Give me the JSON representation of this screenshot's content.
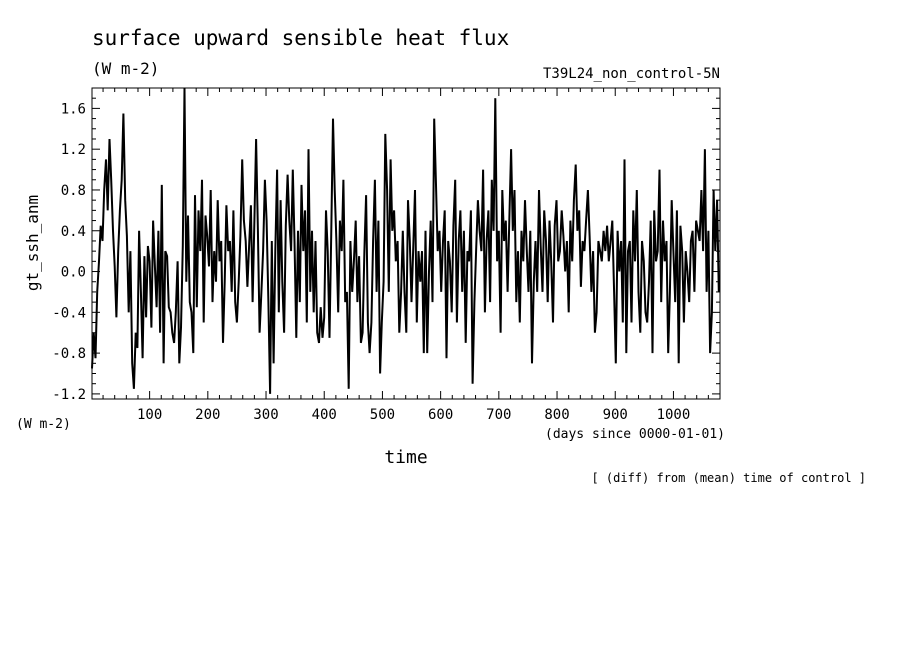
{
  "chart_data": {
    "type": "line",
    "title": "surface upward sensible heat flux",
    "units": "(W m-2)",
    "run_label": "T39L24_non_control-5N",
    "ylabel": "gt_ssh_anm",
    "y_units_note": "(W m-2)",
    "xlabel": "time",
    "x_units_note": "(days since 0000-01-01)",
    "footnote": "[ (diff) from (mean) time of control ]",
    "xlim": [
      1,
      1080
    ],
    "ylim": [
      -1.25,
      1.8
    ],
    "x_ticks": [
      100,
      200,
      300,
      400,
      500,
      600,
      700,
      800,
      900,
      1000
    ],
    "y_ticks": [
      -1.2,
      -0.8,
      -0.4,
      0.0,
      0.4,
      0.8,
      1.2,
      1.6
    ],
    "y_tick_labels": [
      "-1.2",
      "-0.8",
      "-0.4",
      "0.0",
      "0.4",
      "0.8",
      "1.2",
      "1.6"
    ],
    "series": [
      {
        "x": [
          1,
          4,
          7,
          10,
          13,
          16,
          19,
          22,
          25,
          28,
          31,
          34,
          37,
          40,
          43,
          46,
          49,
          52,
          55,
          58,
          61,
          64,
          67,
          70,
          73,
          76,
          79,
          82,
          85,
          88,
          91,
          94,
          97,
          100,
          103,
          106,
          109,
          112,
          115,
          118,
          121,
          124,
          127,
          130,
          133,
          136,
          139,
          142,
          145,
          148,
          151,
          154,
          157,
          160,
          163,
          166,
          169,
          172,
          175,
          178,
          181,
          184,
          187,
          190,
          193,
          196,
          199,
          202,
          205,
          208,
          211,
          214,
          217,
          220,
          223,
          226,
          229,
          232,
          235,
          238,
          241,
          244,
          247,
          250,
          253,
          256,
          259,
          262,
          265,
          268,
          271,
          274,
          277,
          280,
          283,
          286,
          289,
          292,
          295,
          298,
          301,
          304,
          307,
          310,
          313,
          316,
          319,
          322,
          325,
          328,
          331,
          334,
          337,
          340,
          343,
          346,
          349,
          352,
          355,
          358,
          361,
          364,
          367,
          370,
          373,
          376,
          379,
          382,
          385,
          388,
          391,
          394,
          397,
          400,
          403,
          406,
          409,
          412,
          415,
          418,
          421,
          424,
          427,
          430,
          433,
          436,
          439,
          442,
          445,
          448,
          451,
          454,
          457,
          460,
          463,
          466,
          469,
          472,
          475,
          478,
          481,
          484,
          487,
          490,
          493,
          496,
          499,
          502,
          505,
          508,
          511,
          514,
          517,
          520,
          523,
          526,
          529,
          532,
          535,
          538,
          541,
          544,
          547,
          550,
          553,
          556,
          559,
          562,
          565,
          568,
          571,
          574,
          577,
          580,
          583,
          586,
          589,
          592,
          595,
          598,
          601,
          604,
          607,
          610,
          613,
          616,
          619,
          622,
          625,
          628,
          631,
          634,
          637,
          640,
          643,
          646,
          649,
          652,
          655,
          658,
          661,
          664,
          667,
          670,
          673,
          676,
          679,
          682,
          685,
          688,
          691,
          694,
          697,
          700,
          703,
          706,
          709,
          712,
          715,
          718,
          721,
          724,
          727,
          730,
          733,
          736,
          739,
          742,
          745,
          748,
          751,
          754,
          757,
          760,
          763,
          766,
          769,
          772,
          775,
          778,
          781,
          784,
          787,
          790,
          793,
          796,
          799,
          802,
          805,
          808,
          811,
          814,
          817,
          820,
          823,
          826,
          829,
          832,
          835,
          838,
          841,
          844,
          847,
          850,
          853,
          856,
          859,
          862,
          865,
          868,
          871,
          874,
          877,
          880,
          883,
          886,
          889,
          892,
          895,
          898,
          901,
          904,
          907,
          910,
          913,
          916,
          919,
          922,
          925,
          928,
          931,
          934,
          937,
          940,
          943,
          946,
          949,
          952,
          955,
          958,
          961,
          964,
          967,
          970,
          973,
          976,
          979,
          982,
          985,
          988,
          991,
          994,
          997,
          1000,
          1003,
          1006,
          1009,
          1012,
          1015,
          1018,
          1021,
          1024,
          1027,
          1030,
          1033,
          1036,
          1039,
          1042,
          1045,
          1048,
          1051,
          1054,
          1057,
          1060,
          1063,
          1066,
          1069,
          1072,
          1075,
          1078
        ],
        "y": [
          -0.95,
          -0.6,
          -0.85,
          -0.2,
          0.1,
          0.45,
          0.3,
          0.8,
          1.1,
          0.6,
          1.3,
          0.9,
          0.4,
          0.05,
          -0.45,
          0.2,
          0.6,
          0.9,
          1.55,
          0.7,
          0.35,
          -0.4,
          0.2,
          -0.9,
          -1.15,
          -0.6,
          -0.75,
          0.4,
          -0.2,
          -0.85,
          0.15,
          -0.45,
          0.25,
          0.1,
          -0.55,
          0.5,
          0.05,
          -0.35,
          0.4,
          -0.6,
          0.85,
          -0.9,
          0.2,
          0.15,
          -0.35,
          -0.4,
          -0.6,
          -0.7,
          -0.4,
          0.1,
          -0.9,
          -0.55,
          0.25,
          1.8,
          -0.1,
          0.55,
          -0.3,
          -0.4,
          -0.8,
          0.75,
          -0.35,
          0.6,
          0.2,
          0.9,
          -0.5,
          0.55,
          0.35,
          0.05,
          0.8,
          -0.3,
          0.2,
          -0.1,
          0.7,
          0.1,
          0.3,
          -0.7,
          -0.1,
          0.65,
          0.2,
          0.3,
          -0.2,
          0.6,
          -0.3,
          -0.5,
          -0.1,
          0.35,
          1.1,
          0.5,
          0.3,
          -0.15,
          0.25,
          0.65,
          -0.3,
          0.5,
          1.3,
          0.4,
          -0.6,
          -0.2,
          0.2,
          0.9,
          0.5,
          -0.3,
          -1.2,
          0.3,
          -0.9,
          0.2,
          1.0,
          -0.4,
          0.7,
          -0.1,
          -0.6,
          0.45,
          0.95,
          0.5,
          0.2,
          1.0,
          0.3,
          -0.65,
          0.4,
          -0.3,
          0.85,
          0.2,
          0.6,
          -0.5,
          1.2,
          -0.2,
          0.4,
          -0.4,
          0.3,
          -0.6,
          -0.7,
          -0.35,
          -0.65,
          -0.45,
          0.6,
          0.2,
          -0.65,
          0.35,
          1.5,
          0.8,
          0.3,
          -0.4,
          0.5,
          0.2,
          0.9,
          -0.3,
          -0.2,
          -1.15,
          0.3,
          -0.2,
          0.1,
          0.5,
          -0.3,
          0.15,
          -0.7,
          -0.6,
          0.2,
          0.75,
          -0.5,
          -0.8,
          -0.5,
          0.3,
          0.9,
          -0.2,
          0.5,
          -1.0,
          -0.5,
          -0.1,
          1.35,
          0.8,
          -0.2,
          1.1,
          0.4,
          0.6,
          0.1,
          0.3,
          -0.6,
          -0.2,
          0.4,
          -0.2,
          -0.6,
          0.7,
          0.3,
          -0.3,
          0.25,
          0.8,
          -0.5,
          0.2,
          -0.1,
          0.2,
          -0.8,
          0.4,
          -0.8,
          0.0,
          0.5,
          -0.3,
          1.5,
          0.85,
          0.2,
          0.4,
          -0.2,
          0.3,
          0.6,
          -0.85,
          0.3,
          0.1,
          -0.4,
          0.45,
          0.9,
          -0.5,
          0.3,
          0.6,
          -0.2,
          0.4,
          -0.7,
          0.2,
          0.1,
          0.6,
          -1.1,
          -0.3,
          0.2,
          0.7,
          0.4,
          0.2,
          1.0,
          -0.4,
          0.3,
          0.6,
          -0.3,
          0.9,
          0.4,
          1.7,
          0.1,
          0.4,
          -0.6,
          0.8,
          0.3,
          0.5,
          -0.2,
          0.5,
          1.2,
          0.4,
          0.8,
          -0.3,
          0.2,
          -0.5,
          0.4,
          0.1,
          0.7,
          0.2,
          -0.2,
          0.4,
          -0.9,
          -0.1,
          0.3,
          -0.2,
          0.8,
          0.25,
          -0.2,
          0.6,
          0.3,
          -0.3,
          0.5,
          0.1,
          -0.5,
          0.45,
          0.7,
          0.1,
          0.2,
          0.6,
          0.35,
          0.0,
          0.3,
          -0.4,
          0.5,
          0.1,
          0.7,
          1.05,
          0.4,
          0.6,
          -0.15,
          0.3,
          0.2,
          0.5,
          0.8,
          0.35,
          -0.2,
          0.2,
          -0.6,
          -0.4,
          0.3,
          0.2,
          0.1,
          0.4,
          0.2,
          0.45,
          0.1,
          0.3,
          0.5,
          -0.2,
          -0.9,
          0.4,
          0.0,
          0.3,
          -0.5,
          1.1,
          -0.8,
          0.2,
          0.3,
          -0.5,
          0.6,
          0.1,
          0.8,
          -0.2,
          -0.6,
          0.3,
          0.1,
          -0.4,
          -0.5,
          -0.1,
          0.5,
          -0.8,
          0.6,
          0.1,
          0.2,
          1.0,
          -0.3,
          0.5,
          0.1,
          0.3,
          -0.8,
          -0.2,
          0.7,
          0.2,
          -0.3,
          0.6,
          -0.9,
          0.45,
          0.2,
          -0.5,
          0.2,
          0.0,
          -0.3,
          0.3,
          0.4,
          -0.2,
          0.5,
          0.4,
          0.3,
          0.8,
          0.2,
          1.2,
          -0.2,
          0.4,
          -0.8,
          -0.4,
          0.8,
          0.2,
          0.7,
          -0.2
        ]
      }
    ]
  }
}
